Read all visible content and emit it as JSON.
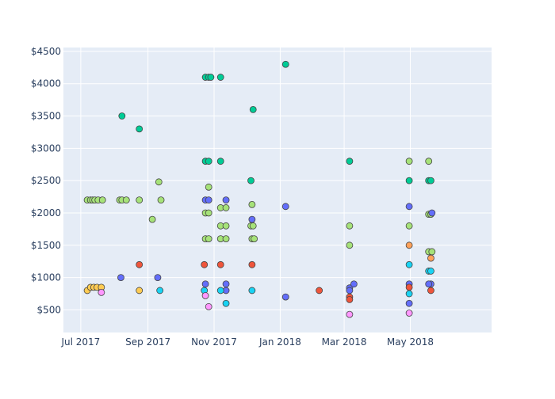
{
  "chart_data": {
    "type": "scatter",
    "title": "",
    "xlabel": "",
    "ylabel": "",
    "x_axis": {
      "type": "date",
      "range": [
        "2017-06-15",
        "2018-07-15"
      ],
      "ticks": [
        {
          "date": "2017-07-01",
          "label": "Jul 2017"
        },
        {
          "date": "2017-09-01",
          "label": "Sep 2017"
        },
        {
          "date": "2017-11-01",
          "label": "Nov 2017"
        },
        {
          "date": "2018-01-01",
          "label": "Jan 2018"
        },
        {
          "date": "2018-03-01",
          "label": "Mar 2018"
        },
        {
          "date": "2018-05-01",
          "label": "May 2018"
        }
      ]
    },
    "y_axis": {
      "range": [
        150,
        4560
      ],
      "ticks": [
        {
          "value": 500,
          "label": "$500"
        },
        {
          "value": 1000,
          "label": "$1000"
        },
        {
          "value": 1500,
          "label": "$1500"
        },
        {
          "value": 2000,
          "label": "$2000"
        },
        {
          "value": 2500,
          "label": "$2500"
        },
        {
          "value": 3000,
          "label": "$3000"
        },
        {
          "value": 3500,
          "label": "$3500"
        },
        {
          "value": 4000,
          "label": "$4000"
        },
        {
          "value": 4500,
          "label": "$4500"
        }
      ]
    },
    "grid": true,
    "legend": "none",
    "colors": {
      "plot_bg": "#e5ecf6",
      "grid": "#ffffff",
      "tick_text": "#2a3f5f",
      "marker_edge": "#444444"
    },
    "series": [
      {
        "color": "#00cc96",
        "points": [
          {
            "x": "2017-08-08",
            "y": 3500
          },
          {
            "x": "2017-08-24",
            "y": 3300
          },
          {
            "x": "2017-10-24",
            "y": 4100
          },
          {
            "x": "2017-10-27",
            "y": 4100
          },
          {
            "x": "2017-10-29",
            "y": 4100
          },
          {
            "x": "2017-11-07",
            "y": 4100
          },
          {
            "x": "2017-10-24",
            "y": 2800
          },
          {
            "x": "2017-10-27",
            "y": 2800
          },
          {
            "x": "2017-11-07",
            "y": 2800
          },
          {
            "x": "2017-12-07",
            "y": 3600
          },
          {
            "x": "2017-12-05",
            "y": 2500
          },
          {
            "x": "2018-01-06",
            "y": 4300
          },
          {
            "x": "2018-03-06",
            "y": 2800
          },
          {
            "x": "2018-04-30",
            "y": 2500
          },
          {
            "x": "2018-05-18",
            "y": 2500
          },
          {
            "x": "2018-05-20",
            "y": 2500
          }
        ]
      },
      {
        "color": "#a6e279",
        "points": [
          {
            "x": "2017-07-07",
            "y": 2200
          },
          {
            "x": "2017-07-10",
            "y": 2200
          },
          {
            "x": "2017-07-12",
            "y": 2200
          },
          {
            "x": "2017-07-14",
            "y": 2200
          },
          {
            "x": "2017-07-17",
            "y": 2200
          },
          {
            "x": "2017-07-21",
            "y": 2200
          },
          {
            "x": "2017-08-06",
            "y": 2200
          },
          {
            "x": "2017-08-08",
            "y": 2200
          },
          {
            "x": "2017-08-12",
            "y": 2200
          },
          {
            "x": "2017-08-24",
            "y": 2200
          },
          {
            "x": "2017-09-13",
            "y": 2200
          },
          {
            "x": "2017-09-11",
            "y": 2480
          },
          {
            "x": "2017-09-05",
            "y": 1900
          },
          {
            "x": "2017-10-24",
            "y": 2000
          },
          {
            "x": "2017-10-27",
            "y": 2000
          },
          {
            "x": "2017-10-27",
            "y": 2400
          },
          {
            "x": "2017-10-24",
            "y": 1600
          },
          {
            "x": "2017-10-27",
            "y": 1600
          },
          {
            "x": "2017-11-07",
            "y": 1600
          },
          {
            "x": "2017-11-07",
            "y": 1800
          },
          {
            "x": "2017-11-07",
            "y": 2080
          },
          {
            "x": "2017-11-12",
            "y": 2080
          },
          {
            "x": "2017-11-12",
            "y": 1800
          },
          {
            "x": "2017-11-12",
            "y": 1600
          },
          {
            "x": "2017-12-06",
            "y": 2130
          },
          {
            "x": "2017-12-05",
            "y": 1800
          },
          {
            "x": "2017-12-07",
            "y": 1800
          },
          {
            "x": "2017-12-06",
            "y": 1600
          },
          {
            "x": "2017-12-08",
            "y": 1600
          },
          {
            "x": "2018-03-06",
            "y": 1800
          },
          {
            "x": "2018-03-06",
            "y": 1500
          },
          {
            "x": "2018-04-30",
            "y": 2800
          },
          {
            "x": "2018-04-30",
            "y": 1800
          },
          {
            "x": "2018-05-18",
            "y": 2800
          },
          {
            "x": "2018-05-18",
            "y": 1980
          },
          {
            "x": "2018-05-20",
            "y": 1980
          },
          {
            "x": "2018-05-18",
            "y": 1400
          },
          {
            "x": "2018-05-21",
            "y": 1400
          }
        ]
      },
      {
        "color": "#636efa",
        "points": [
          {
            "x": "2017-08-07",
            "y": 1000
          },
          {
            "x": "2017-09-10",
            "y": 1000
          },
          {
            "x": "2017-10-24",
            "y": 2200
          },
          {
            "x": "2017-10-27",
            "y": 2200
          },
          {
            "x": "2017-11-12",
            "y": 2200
          },
          {
            "x": "2017-10-24",
            "y": 900
          },
          {
            "x": "2017-11-12",
            "y": 900
          },
          {
            "x": "2017-11-12",
            "y": 800
          },
          {
            "x": "2017-12-06",
            "y": 1900
          },
          {
            "x": "2018-01-06",
            "y": 2100
          },
          {
            "x": "2018-01-06",
            "y": 700
          },
          {
            "x": "2018-03-06",
            "y": 840
          },
          {
            "x": "2018-03-06",
            "y": 800
          },
          {
            "x": "2018-03-10",
            "y": 900
          },
          {
            "x": "2018-04-30",
            "y": 2100
          },
          {
            "x": "2018-04-30",
            "y": 900
          },
          {
            "x": "2018-04-30",
            "y": 600
          },
          {
            "x": "2018-05-21",
            "y": 2000
          },
          {
            "x": "2018-05-20",
            "y": 900
          },
          {
            "x": "2018-05-18",
            "y": 900
          }
        ]
      },
      {
        "color": "#ef553b",
        "points": [
          {
            "x": "2017-08-24",
            "y": 1200
          },
          {
            "x": "2017-10-23",
            "y": 1200
          },
          {
            "x": "2017-11-07",
            "y": 1200
          },
          {
            "x": "2017-12-06",
            "y": 1200
          },
          {
            "x": "2018-02-06",
            "y": 800
          },
          {
            "x": "2018-03-06",
            "y": 700
          },
          {
            "x": "2018-03-06",
            "y": 660
          },
          {
            "x": "2018-04-30",
            "y": 850
          },
          {
            "x": "2018-05-20",
            "y": 800
          }
        ]
      },
      {
        "color": "#fecb52",
        "points": [
          {
            "x": "2017-07-07",
            "y": 800
          },
          {
            "x": "2017-07-10",
            "y": 850
          },
          {
            "x": "2017-07-13",
            "y": 850
          },
          {
            "x": "2017-07-16",
            "y": 850
          },
          {
            "x": "2017-07-20",
            "y": 850
          },
          {
            "x": "2017-08-24",
            "y": 800
          }
        ]
      },
      {
        "color": "#ffa15a",
        "points": [
          {
            "x": "2018-04-30",
            "y": 1500
          },
          {
            "x": "2018-05-20",
            "y": 1300
          }
        ]
      },
      {
        "color": "#19d3f3",
        "points": [
          {
            "x": "2017-09-12",
            "y": 800
          },
          {
            "x": "2017-10-23",
            "y": 800
          },
          {
            "x": "2017-11-07",
            "y": 800
          },
          {
            "x": "2017-11-12",
            "y": 600
          },
          {
            "x": "2017-12-06",
            "y": 800
          },
          {
            "x": "2018-04-30",
            "y": 1200
          },
          {
            "x": "2018-04-30",
            "y": 750
          },
          {
            "x": "2018-05-18",
            "y": 1100
          },
          {
            "x": "2018-05-20",
            "y": 1100
          }
        ]
      },
      {
        "color": "#ff97ff",
        "points": [
          {
            "x": "2017-07-20",
            "y": 770
          },
          {
            "x": "2017-10-24",
            "y": 720
          },
          {
            "x": "2017-10-27",
            "y": 550
          },
          {
            "x": "2018-03-06",
            "y": 430
          },
          {
            "x": "2018-04-30",
            "y": 450
          }
        ]
      }
    ]
  }
}
